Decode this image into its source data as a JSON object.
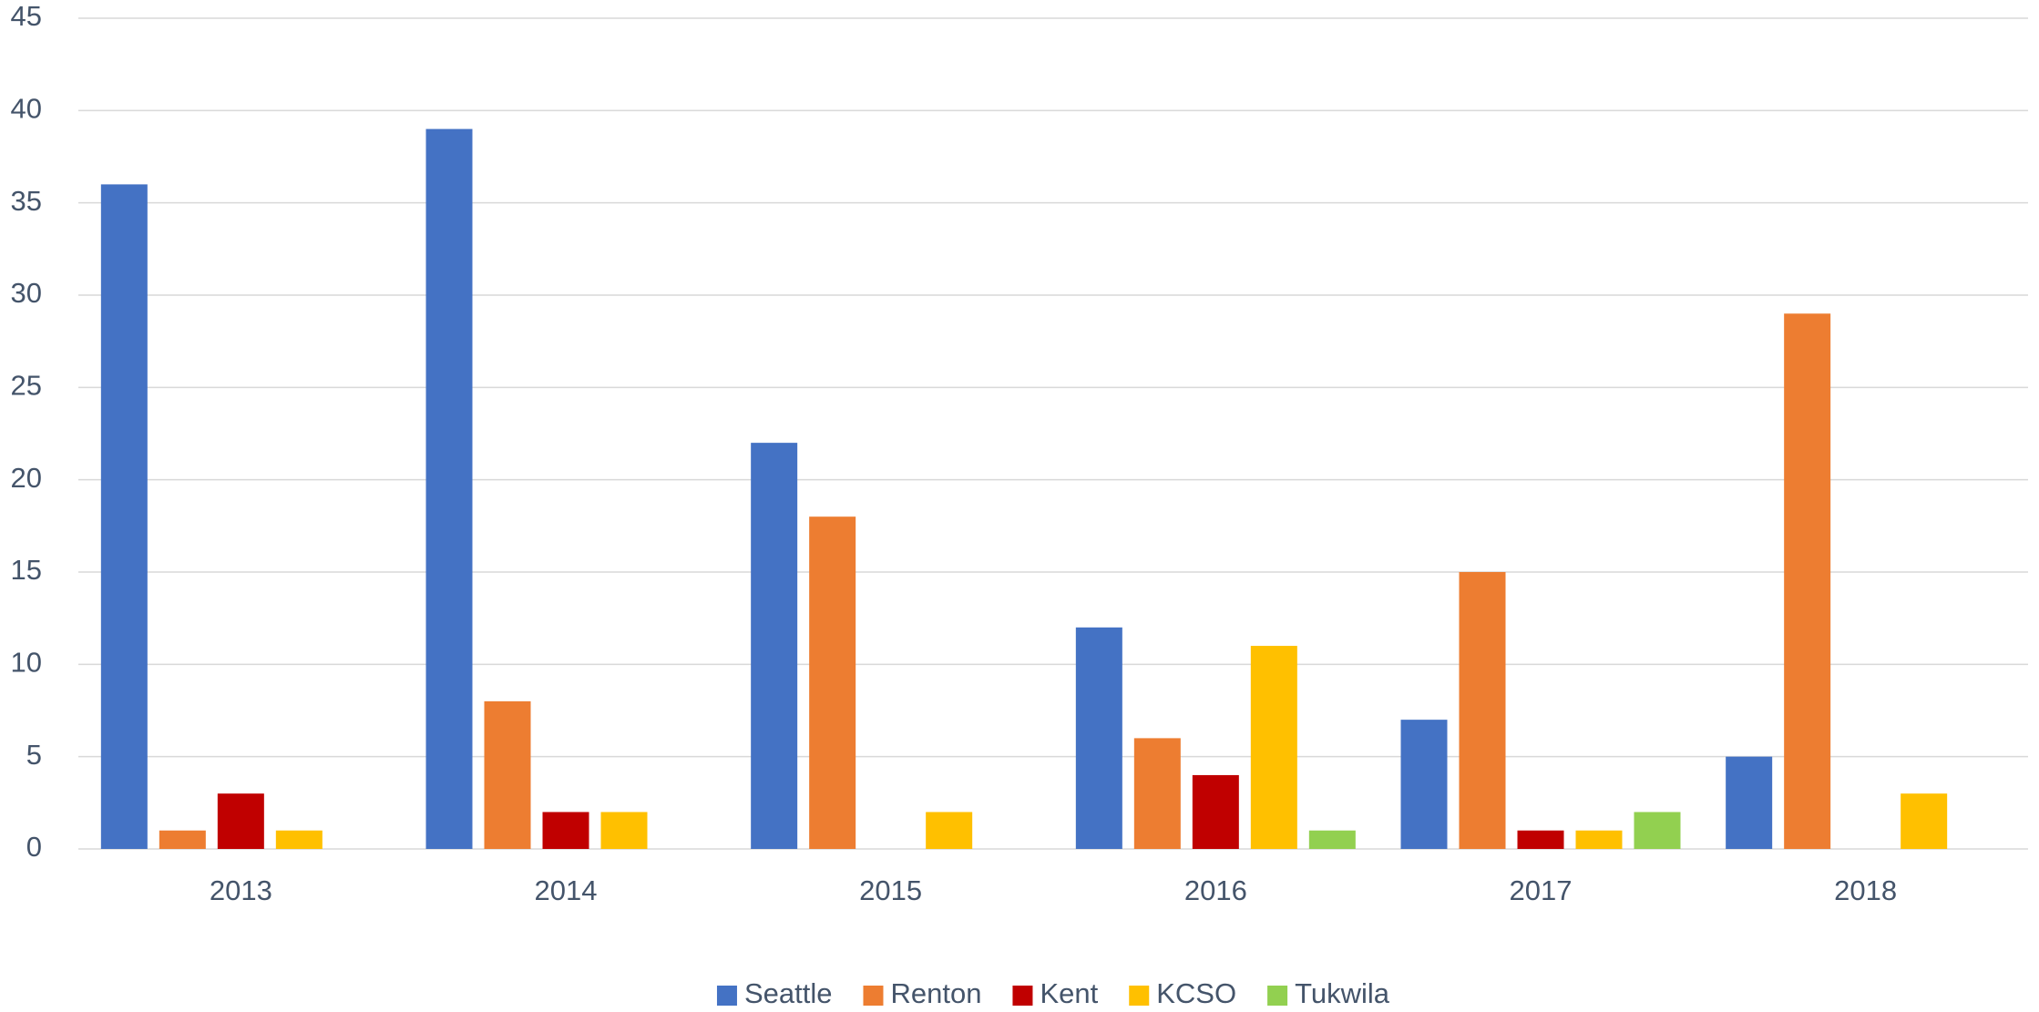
{
  "chart_data": {
    "type": "bar",
    "categories": [
      "2013",
      "2014",
      "2015",
      "2016",
      "2017",
      "2018"
    ],
    "series": [
      {
        "name": "Seattle",
        "color": "#4472c4",
        "values": [
          36,
          39,
          22,
          12,
          7,
          5
        ]
      },
      {
        "name": "Renton",
        "color": "#ed7d31",
        "values": [
          1,
          8,
          18,
          6,
          15,
          29
        ]
      },
      {
        "name": "Kent",
        "color": "#c00000",
        "values": [
          3,
          2,
          0,
          4,
          1,
          0
        ]
      },
      {
        "name": "KCSO",
        "color": "#ffc000",
        "values": [
          1,
          2,
          2,
          11,
          1,
          3
        ]
      },
      {
        "name": "Tukwila",
        "color": "#92d050",
        "values": [
          0,
          0,
          0,
          1,
          2,
          0
        ]
      }
    ],
    "ylim": [
      0,
      45
    ],
    "yticks": [
      0,
      5,
      10,
      15,
      20,
      25,
      30,
      35,
      40,
      45
    ],
    "grid": true,
    "legend": "bottom"
  }
}
